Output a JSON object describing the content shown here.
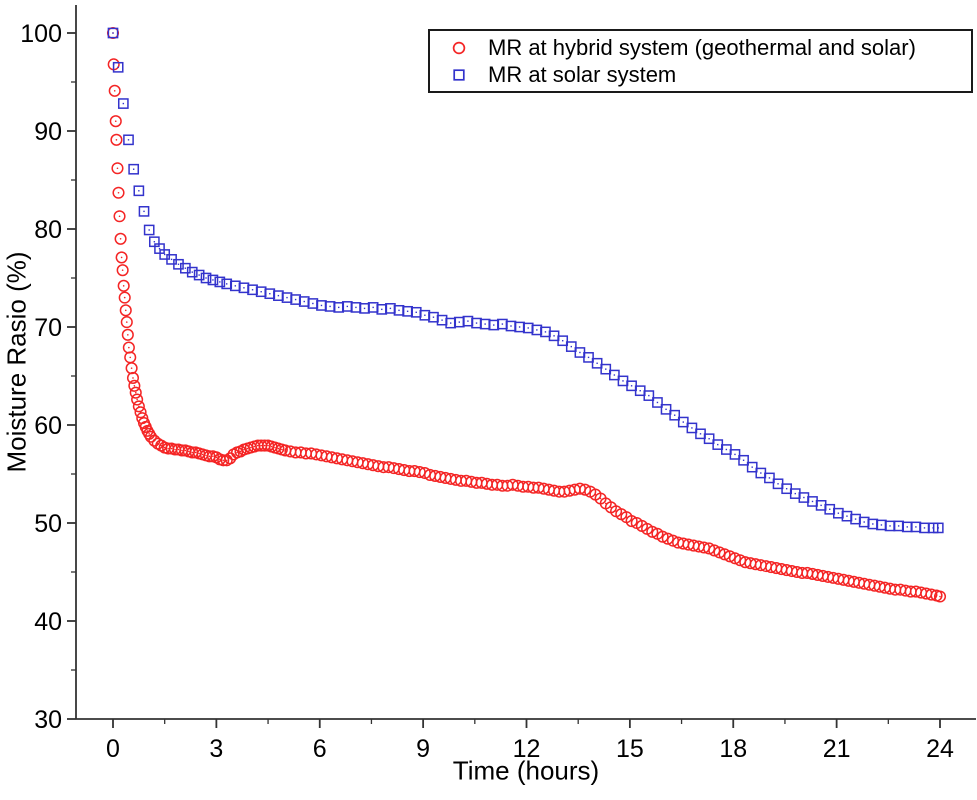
{
  "figure": {
    "background": "#ffffff",
    "axis_color": "#333333",
    "text_color": "#000000"
  },
  "chart_data": {
    "type": "scatter",
    "title": "",
    "xlabel": "Time (hours)",
    "ylabel": "Moisture Rasio (%)",
    "xlim": [
      0,
      24
    ],
    "ylim": [
      30,
      100
    ],
    "x_ticks": [
      0,
      3,
      6,
      9,
      12,
      15,
      18,
      21,
      24
    ],
    "x_minor_ticks": [
      1.5,
      4.5,
      7.5,
      10.5,
      13.5,
      16.5,
      19.5,
      22.5
    ],
    "y_ticks": [
      30,
      40,
      50,
      60,
      70,
      80,
      90,
      100
    ],
    "y_minor_ticks": [
      35,
      45,
      55,
      65,
      75,
      85,
      95
    ],
    "grid": false,
    "legend_position": "top-right",
    "series": [
      {
        "name": "MR at hybrid system (geothermal and solar)",
        "marker": "circle",
        "color": "#f42525",
        "points": [
          [
            0,
            100
          ],
          [
            0.02,
            96.8
          ],
          [
            0.05,
            94.1
          ],
          [
            0.08,
            91
          ],
          [
            0.1,
            89.1
          ],
          [
            0.13,
            86.2
          ],
          [
            0.16,
            83.7
          ],
          [
            0.19,
            81.3
          ],
          [
            0.22,
            79
          ],
          [
            0.25,
            77.1
          ],
          [
            0.28,
            75.8
          ],
          [
            0.31,
            74.2
          ],
          [
            0.34,
            73
          ],
          [
            0.37,
            71.7
          ],
          [
            0.4,
            70.5
          ],
          [
            0.43,
            69.2
          ],
          [
            0.46,
            67.9
          ],
          [
            0.5,
            66.9
          ],
          [
            0.54,
            65.8
          ],
          [
            0.58,
            64.8
          ],
          [
            0.62,
            64
          ],
          [
            0.66,
            63.3
          ],
          [
            0.7,
            62.6
          ],
          [
            0.75,
            61.9
          ],
          [
            0.8,
            61.3
          ],
          [
            0.85,
            60.7
          ],
          [
            0.9,
            60.2
          ],
          [
            0.95,
            59.8
          ],
          [
            1,
            59.4
          ],
          [
            1.05,
            59.1
          ],
          [
            1.1,
            58.8
          ],
          [
            1.2,
            58.4
          ],
          [
            1.3,
            58.1
          ],
          [
            1.4,
            57.9
          ],
          [
            1.5,
            57.7
          ],
          [
            1.6,
            57.6
          ],
          [
            1.7,
            57.6
          ],
          [
            1.8,
            57.5
          ],
          [
            1.9,
            57.5
          ],
          [
            2,
            57.4
          ],
          [
            2.1,
            57.4
          ],
          [
            2.2,
            57.3
          ],
          [
            2.3,
            57.2
          ],
          [
            2.4,
            57.2
          ],
          [
            2.5,
            57.1
          ],
          [
            2.6,
            57
          ],
          [
            2.7,
            56.9
          ],
          [
            2.8,
            56.8
          ],
          [
            2.9,
            56.8
          ],
          [
            3,
            56.7
          ],
          [
            3.1,
            56.5
          ],
          [
            3.2,
            56.4
          ],
          [
            3.3,
            56.4
          ],
          [
            3.4,
            56.6
          ],
          [
            3.5,
            57
          ],
          [
            3.6,
            57.2
          ],
          [
            3.7,
            57.3
          ],
          [
            3.8,
            57.5
          ],
          [
            3.9,
            57.6
          ],
          [
            4,
            57.7
          ],
          [
            4.1,
            57.8
          ],
          [
            4.2,
            57.9
          ],
          [
            4.3,
            57.9
          ],
          [
            4.4,
            57.9
          ],
          [
            4.5,
            57.9
          ],
          [
            4.6,
            57.8
          ],
          [
            4.7,
            57.7
          ],
          [
            4.8,
            57.6
          ],
          [
            4.9,
            57.5
          ],
          [
            5,
            57.4
          ],
          [
            5.15,
            57.3
          ],
          [
            5.3,
            57.2
          ],
          [
            5.45,
            57.2
          ],
          [
            5.6,
            57.1
          ],
          [
            5.75,
            57.1
          ],
          [
            5.9,
            57
          ],
          [
            6.05,
            56.9
          ],
          [
            6.2,
            56.8
          ],
          [
            6.35,
            56.7
          ],
          [
            6.5,
            56.6
          ],
          [
            6.65,
            56.5
          ],
          [
            6.8,
            56.4
          ],
          [
            6.95,
            56.3
          ],
          [
            7.1,
            56.2
          ],
          [
            7.25,
            56.1
          ],
          [
            7.4,
            56
          ],
          [
            7.55,
            55.9
          ],
          [
            7.7,
            55.8
          ],
          [
            7.85,
            55.7
          ],
          [
            8,
            55.7
          ],
          [
            8.15,
            55.6
          ],
          [
            8.3,
            55.5
          ],
          [
            8.45,
            55.4
          ],
          [
            8.6,
            55.3
          ],
          [
            8.75,
            55.3
          ],
          [
            8.9,
            55.2
          ],
          [
            9.05,
            55.1
          ],
          [
            9.2,
            54.9
          ],
          [
            9.35,
            54.8
          ],
          [
            9.5,
            54.7
          ],
          [
            9.65,
            54.6
          ],
          [
            9.8,
            54.5
          ],
          [
            9.95,
            54.4
          ],
          [
            10.1,
            54.3
          ],
          [
            10.25,
            54.3
          ],
          [
            10.4,
            54.2
          ],
          [
            10.55,
            54.1
          ],
          [
            10.7,
            54.1
          ],
          [
            10.85,
            54
          ],
          [
            11,
            53.9
          ],
          [
            11.15,
            53.9
          ],
          [
            11.3,
            53.8
          ],
          [
            11.45,
            53.8
          ],
          [
            11.6,
            53.9
          ],
          [
            11.75,
            53.8
          ],
          [
            11.9,
            53.7
          ],
          [
            12.05,
            53.7
          ],
          [
            12.2,
            53.6
          ],
          [
            12.35,
            53.6
          ],
          [
            12.5,
            53.5
          ],
          [
            12.65,
            53.4
          ],
          [
            12.8,
            53.3
          ],
          [
            12.95,
            53.2
          ],
          [
            13.1,
            53.2
          ],
          [
            13.25,
            53.3
          ],
          [
            13.4,
            53.4
          ],
          [
            13.55,
            53.5
          ],
          [
            13.7,
            53.4
          ],
          [
            13.85,
            53.2
          ],
          [
            14,
            52.9
          ],
          [
            14.15,
            52.5
          ],
          [
            14.3,
            52
          ],
          [
            14.45,
            51.6
          ],
          [
            14.6,
            51.2
          ],
          [
            14.75,
            50.9
          ],
          [
            14.9,
            50.6
          ],
          [
            15.05,
            50.2
          ],
          [
            15.2,
            50
          ],
          [
            15.35,
            49.7
          ],
          [
            15.5,
            49.4
          ],
          [
            15.65,
            49.1
          ],
          [
            15.8,
            48.9
          ],
          [
            15.95,
            48.6
          ],
          [
            16.1,
            48.4
          ],
          [
            16.25,
            48.2
          ],
          [
            16.4,
            48
          ],
          [
            16.55,
            47.9
          ],
          [
            16.7,
            47.8
          ],
          [
            16.85,
            47.7
          ],
          [
            17,
            47.6
          ],
          [
            17.15,
            47.5
          ],
          [
            17.3,
            47.4
          ],
          [
            17.45,
            47.2
          ],
          [
            17.6,
            47
          ],
          [
            17.75,
            46.8
          ],
          [
            17.9,
            46.6
          ],
          [
            18.05,
            46.4
          ],
          [
            18.2,
            46.2
          ],
          [
            18.35,
            46
          ],
          [
            18.5,
            45.9
          ],
          [
            18.65,
            45.8
          ],
          [
            18.8,
            45.7
          ],
          [
            18.95,
            45.6
          ],
          [
            19.1,
            45.5
          ],
          [
            19.25,
            45.4
          ],
          [
            19.4,
            45.3
          ],
          [
            19.55,
            45.2
          ],
          [
            19.7,
            45.1
          ],
          [
            19.85,
            45
          ],
          [
            20,
            44.9
          ],
          [
            20.15,
            44.9
          ],
          [
            20.3,
            44.8
          ],
          [
            20.45,
            44.7
          ],
          [
            20.6,
            44.6
          ],
          [
            20.75,
            44.5
          ],
          [
            20.9,
            44.4
          ],
          [
            21.05,
            44.3
          ],
          [
            21.2,
            44.2
          ],
          [
            21.35,
            44.1
          ],
          [
            21.5,
            44
          ],
          [
            21.65,
            43.9
          ],
          [
            21.8,
            43.8
          ],
          [
            21.95,
            43.7
          ],
          [
            22.1,
            43.6
          ],
          [
            22.25,
            43.5
          ],
          [
            22.4,
            43.4
          ],
          [
            22.55,
            43.3
          ],
          [
            22.7,
            43.2
          ],
          [
            22.85,
            43.2
          ],
          [
            23,
            43.1
          ],
          [
            23.15,
            43
          ],
          [
            23.3,
            43
          ],
          [
            23.45,
            42.9
          ],
          [
            23.6,
            42.8
          ],
          [
            23.75,
            42.7
          ],
          [
            23.9,
            42.6
          ],
          [
            24,
            42.5
          ]
        ]
      },
      {
        "name": "MR at solar system",
        "marker": "square",
        "color": "#3333cc",
        "points": [
          [
            0,
            100
          ],
          [
            0.15,
            96.5
          ],
          [
            0.3,
            92.8
          ],
          [
            0.45,
            89.1
          ],
          [
            0.6,
            86.1
          ],
          [
            0.75,
            83.9
          ],
          [
            0.9,
            81.8
          ],
          [
            1.05,
            79.9
          ],
          [
            1.2,
            78.7
          ],
          [
            1.35,
            78
          ],
          [
            1.5,
            77.4
          ],
          [
            1.7,
            76.9
          ],
          [
            1.9,
            76.4
          ],
          [
            2.1,
            76
          ],
          [
            2.3,
            75.6
          ],
          [
            2.5,
            75.3
          ],
          [
            2.7,
            75
          ],
          [
            2.9,
            74.8
          ],
          [
            3.1,
            74.6
          ],
          [
            3.3,
            74.4
          ],
          [
            3.55,
            74.2
          ],
          [
            3.8,
            74
          ],
          [
            4.05,
            73.8
          ],
          [
            4.3,
            73.6
          ],
          [
            4.55,
            73.4
          ],
          [
            4.8,
            73.2
          ],
          [
            5.05,
            73
          ],
          [
            5.3,
            72.8
          ],
          [
            5.55,
            72.6
          ],
          [
            5.8,
            72.4
          ],
          [
            6.05,
            72.2
          ],
          [
            6.3,
            72.1
          ],
          [
            6.55,
            72
          ],
          [
            6.8,
            72.1
          ],
          [
            7.05,
            72
          ],
          [
            7.3,
            71.9
          ],
          [
            7.55,
            72
          ],
          [
            7.8,
            71.8
          ],
          [
            8.05,
            71.9
          ],
          [
            8.3,
            71.7
          ],
          [
            8.55,
            71.6
          ],
          [
            8.8,
            71.5
          ],
          [
            9.05,
            71.2
          ],
          [
            9.3,
            71
          ],
          [
            9.55,
            70.7
          ],
          [
            9.8,
            70.4
          ],
          [
            10.05,
            70.5
          ],
          [
            10.3,
            70.6
          ],
          [
            10.55,
            70.4
          ],
          [
            10.8,
            70.3
          ],
          [
            11.05,
            70.2
          ],
          [
            11.3,
            70.3
          ],
          [
            11.55,
            70.1
          ],
          [
            11.8,
            70
          ],
          [
            12.05,
            69.9
          ],
          [
            12.3,
            69.7
          ],
          [
            12.55,
            69.5
          ],
          [
            12.8,
            69.1
          ],
          [
            13.05,
            68.6
          ],
          [
            13.3,
            68
          ],
          [
            13.55,
            67.4
          ],
          [
            13.8,
            66.9
          ],
          [
            14.05,
            66.3
          ],
          [
            14.3,
            65.7
          ],
          [
            14.55,
            65.1
          ],
          [
            14.8,
            64.5
          ],
          [
            15.05,
            64
          ],
          [
            15.3,
            63.5
          ],
          [
            15.55,
            63
          ],
          [
            15.8,
            62.3
          ],
          [
            16.05,
            61.6
          ],
          [
            16.3,
            61
          ],
          [
            16.55,
            60.3
          ],
          [
            16.8,
            59.7
          ],
          [
            17.05,
            59.1
          ],
          [
            17.3,
            58.6
          ],
          [
            17.55,
            58
          ],
          [
            17.8,
            57.5
          ],
          [
            18.05,
            57
          ],
          [
            18.3,
            56.4
          ],
          [
            18.55,
            55.7
          ],
          [
            18.8,
            55.1
          ],
          [
            19.05,
            54.6
          ],
          [
            19.3,
            54
          ],
          [
            19.55,
            53.5
          ],
          [
            19.8,
            53
          ],
          [
            20.05,
            52.6
          ],
          [
            20.3,
            52.2
          ],
          [
            20.55,
            51.8
          ],
          [
            20.8,
            51.4
          ],
          [
            21.05,
            51
          ],
          [
            21.3,
            50.7
          ],
          [
            21.55,
            50.4
          ],
          [
            21.8,
            50.1
          ],
          [
            22.05,
            49.9
          ],
          [
            22.3,
            49.8
          ],
          [
            22.55,
            49.7
          ],
          [
            22.8,
            49.7
          ],
          [
            23.05,
            49.6
          ],
          [
            23.3,
            49.6
          ],
          [
            23.55,
            49.5
          ],
          [
            23.8,
            49.5
          ],
          [
            23.95,
            49.5
          ]
        ]
      }
    ]
  }
}
